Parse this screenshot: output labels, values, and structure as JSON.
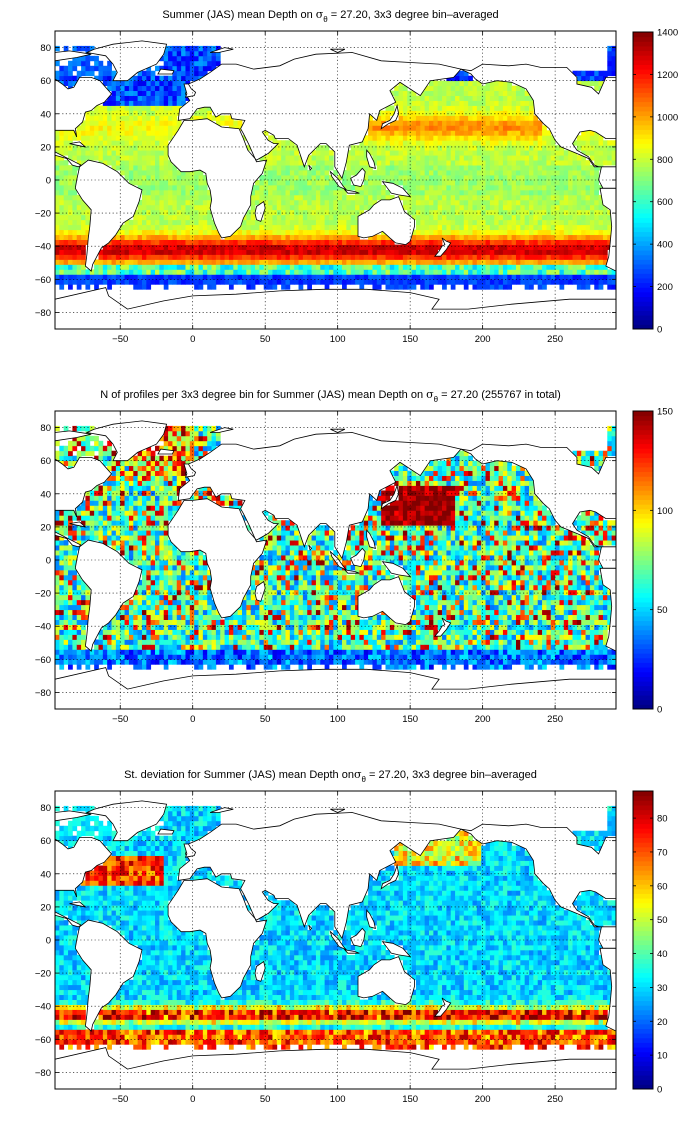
{
  "figure": {
    "background": "#ffffff"
  },
  "chart_data": [
    {
      "type": "heatmap",
      "title_parts": [
        "Summer (JAS) mean Depth on ",
        "σ",
        "θ",
        " = 27.20, 3x3 degree bin–averaged"
      ],
      "xlim": [
        -95,
        292
      ],
      "ylim": [
        -90,
        90
      ],
      "xticks": [
        -50,
        0,
        50,
        100,
        150,
        200,
        250
      ],
      "yticks": [
        -80,
        -60,
        -40,
        -20,
        0,
        20,
        40,
        60,
        80
      ],
      "grid": true,
      "colorbar": {
        "clim": [
          0,
          1400
        ],
        "ticks": [
          0,
          200,
          400,
          600,
          800,
          1000,
          1200,
          1400
        ],
        "colormap": "jet"
      },
      "field_model": "depth"
    },
    {
      "type": "heatmap",
      "title_parts": [
        "N of profiles per 3x3 degree bin for Summer (JAS) mean Depth on ",
        "σ",
        "θ",
        " = 27.20 (255767 in total)"
      ],
      "total_profiles": 255767,
      "xlim": [
        -95,
        292
      ],
      "ylim": [
        -90,
        90
      ],
      "xticks": [
        -50,
        0,
        50,
        100,
        150,
        200,
        250
      ],
      "yticks": [
        -80,
        -60,
        -40,
        -20,
        0,
        20,
        40,
        60,
        80
      ],
      "grid": true,
      "colorbar": {
        "clim": [
          0,
          150
        ],
        "ticks": [
          0,
          50,
          100,
          150
        ],
        "colormap": "jet"
      },
      "field_model": "count"
    },
    {
      "type": "heatmap",
      "title_parts": [
        "St. deviation for Summer (JAS) mean Depth on",
        "σ",
        "θ",
        " = 27.20, 3x3 degree bin–averaged"
      ],
      "xlim": [
        -95,
        292
      ],
      "ylim": [
        -90,
        90
      ],
      "xticks": [
        -50,
        0,
        50,
        100,
        150,
        200,
        250
      ],
      "yticks": [
        -80,
        -60,
        -40,
        -20,
        0,
        20,
        40,
        60,
        80
      ],
      "grid": true,
      "colorbar": {
        "clim": [
          0,
          88
        ],
        "ticks": [
          0,
          10,
          20,
          30,
          40,
          50,
          60,
          70,
          80
        ],
        "colormap": "jet"
      },
      "field_model": "stdev"
    }
  ]
}
